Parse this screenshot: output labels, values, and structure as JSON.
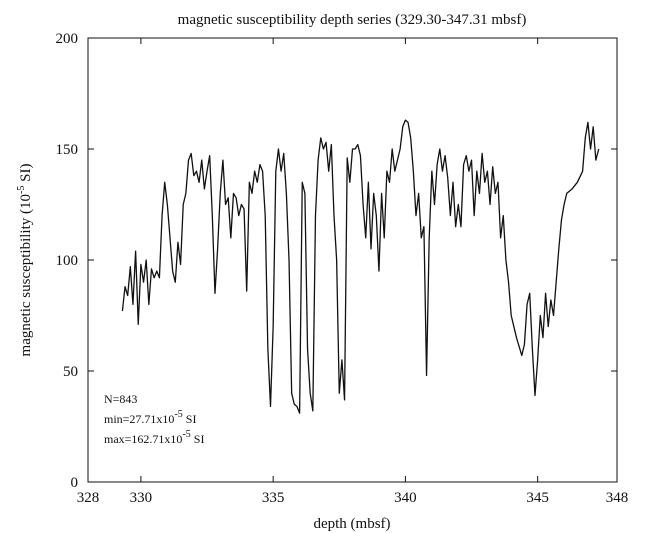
{
  "chart_data": {
    "type": "line",
    "title": "magnetic susceptibility depth series (329.30-347.31 mbsf)",
    "xlabel": "depth (mbsf)",
    "ylabel": {
      "text": "magnetic susceptibility (10",
      "sup": "-5",
      "after": " SI)"
    },
    "annotations": [
      {
        "text": "N=843"
      },
      {
        "text": "min=27.71x10",
        "sup": "-5",
        "after": " SI"
      },
      {
        "text": "max=162.71x10",
        "sup": "-5",
        "after": " SI"
      }
    ],
    "xlim": [
      328,
      348
    ],
    "xticks": [
      328,
      330,
      335,
      340,
      345,
      348
    ],
    "ylim": [
      0,
      200
    ],
    "yticks": [
      0,
      50,
      100,
      150,
      200
    ],
    "grid": false,
    "series": [
      {
        "name": "magnetic susceptibility",
        "color": "#111111",
        "x": [
          329.3,
          329.4,
          329.5,
          329.6,
          329.7,
          329.8,
          329.9,
          330.0,
          330.1,
          330.2,
          330.3,
          330.4,
          330.5,
          330.6,
          330.7,
          330.8,
          330.9,
          331.0,
          331.1,
          331.2,
          331.3,
          331.4,
          331.5,
          331.6,
          331.7,
          331.8,
          331.9,
          332.0,
          332.1,
          332.2,
          332.3,
          332.4,
          332.5,
          332.6,
          332.7,
          332.8,
          332.9,
          333.0,
          333.1,
          333.2,
          333.3,
          333.4,
          333.5,
          333.6,
          333.7,
          333.8,
          333.9,
          334.0,
          334.1,
          334.2,
          334.3,
          334.4,
          334.5,
          334.6,
          334.7,
          334.8,
          334.9,
          335.0,
          335.1,
          335.2,
          335.3,
          335.4,
          335.5,
          335.6,
          335.7,
          335.8,
          335.9,
          336.0,
          336.1,
          336.2,
          336.3,
          336.4,
          336.5,
          336.6,
          336.7,
          336.8,
          336.9,
          337.0,
          337.1,
          337.2,
          337.3,
          337.4,
          337.5,
          337.6,
          337.7,
          337.8,
          337.9,
          338.0,
          338.1,
          338.2,
          338.3,
          338.4,
          338.5,
          338.6,
          338.7,
          338.8,
          338.9,
          339.0,
          339.1,
          339.2,
          339.3,
          339.4,
          339.5,
          339.6,
          339.7,
          339.8,
          339.9,
          340.0,
          340.1,
          340.2,
          340.3,
          340.4,
          340.5,
          340.6,
          340.7,
          340.8,
          340.9,
          341.0,
          341.1,
          341.2,
          341.3,
          341.4,
          341.5,
          341.6,
          341.7,
          341.8,
          341.9,
          342.0,
          342.1,
          342.2,
          342.3,
          342.4,
          342.5,
          342.6,
          342.7,
          342.8,
          342.9,
          343.0,
          343.1,
          343.2,
          343.3,
          343.4,
          343.5,
          343.6,
          343.7,
          343.8,
          343.9,
          344.0,
          344.2,
          344.4,
          344.5,
          344.6,
          344.7,
          344.8,
          344.9,
          345.0,
          345.1,
          345.2,
          345.3,
          345.4,
          345.5,
          345.6,
          345.7,
          345.8,
          345.9,
          346.0,
          346.1,
          346.3,
          346.5,
          346.7,
          346.8,
          346.9,
          347.0,
          347.1,
          347.2,
          347.31
        ],
        "values": [
          77,
          88,
          84,
          97,
          80,
          104,
          71,
          98,
          90,
          100,
          80,
          96,
          92,
          95,
          92,
          120,
          135,
          125,
          110,
          95,
          90,
          108,
          98,
          125,
          130,
          145,
          148,
          138,
          140,
          135,
          145,
          132,
          140,
          147,
          120,
          85,
          105,
          130,
          145,
          125,
          128,
          110,
          130,
          128,
          120,
          125,
          123,
          86,
          135,
          130,
          140,
          135,
          143,
          140,
          120,
          60,
          34,
          70,
          140,
          150,
          140,
          148,
          130,
          100,
          40,
          35,
          34,
          31,
          135,
          130,
          60,
          40,
          32,
          120,
          145,
          155,
          150,
          153,
          140,
          152,
          120,
          100,
          40,
          55,
          37,
          146,
          135,
          150,
          150,
          152,
          147,
          125,
          110,
          135,
          105,
          130,
          120,
          95,
          130,
          110,
          140,
          135,
          150,
          140,
          145,
          150,
          160,
          163,
          162,
          155,
          140,
          120,
          130,
          110,
          115,
          48,
          110,
          140,
          125,
          143,
          150,
          140,
          147,
          137,
          120,
          135,
          115,
          125,
          115,
          143,
          147,
          140,
          145,
          120,
          140,
          130,
          148,
          135,
          140,
          125,
          142,
          130,
          135,
          110,
          120,
          100,
          90,
          75,
          65,
          57,
          62,
          80,
          85,
          60,
          39,
          55,
          75,
          65,
          85,
          70,
          82,
          75,
          90,
          105,
          118,
          125,
          130,
          132,
          135,
          140,
          155,
          162,
          150,
          160,
          145,
          150
        ]
      }
    ]
  }
}
